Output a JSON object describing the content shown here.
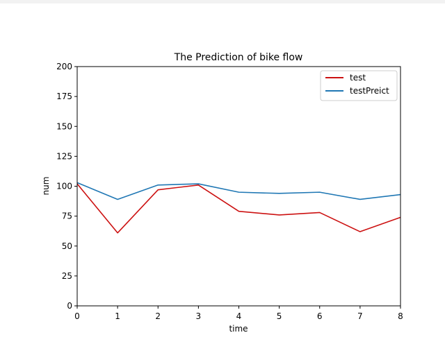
{
  "chart_data": {
    "type": "line",
    "title": "The Prediction of bike flow",
    "xlabel": "time",
    "ylabel": "num",
    "x": [
      0,
      1,
      2,
      3,
      4,
      5,
      6,
      7,
      8
    ],
    "xlim": [
      0,
      8
    ],
    "ylim": [
      0,
      200
    ],
    "xticks": [
      0,
      1,
      2,
      3,
      4,
      5,
      6,
      7,
      8
    ],
    "yticks": [
      0,
      25,
      50,
      75,
      100,
      125,
      150,
      175,
      200
    ],
    "grid": false,
    "legend_position": "top-right",
    "series": [
      {
        "name": "test",
        "color": "#cc1111",
        "values": [
          102,
          61,
          97,
          101,
          79,
          76,
          78,
          62,
          74
        ]
      },
      {
        "name": "testPreict",
        "color": "#1f77b4",
        "values": [
          103,
          89,
          101,
          102,
          95,
          94,
          95,
          89,
          93
        ]
      }
    ]
  }
}
